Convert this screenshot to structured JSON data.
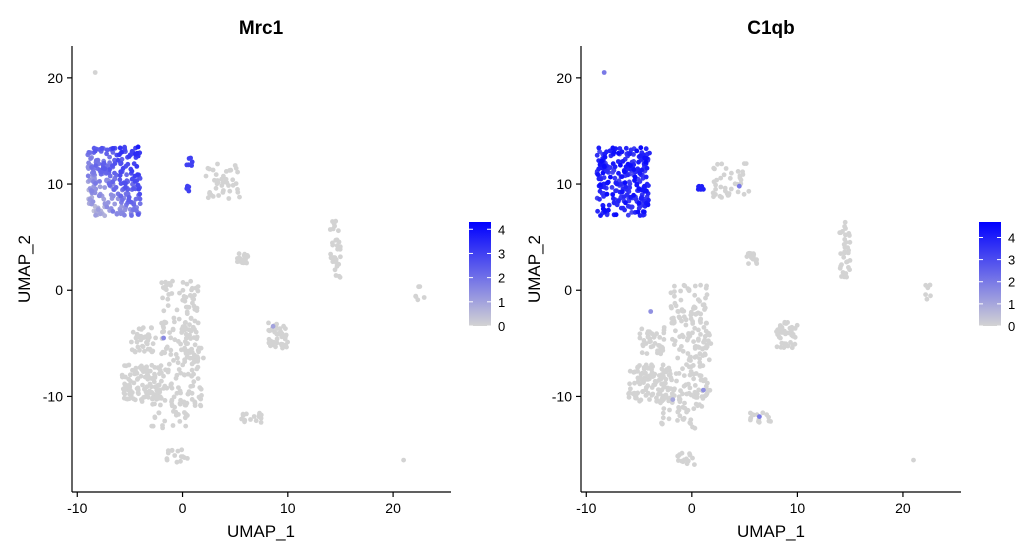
{
  "chart_data": [
    {
      "type": "scatter",
      "title": "Mrc1",
      "xlabel": "UMAP_1",
      "ylabel": "UMAP_2",
      "xlim": [
        -10.5,
        25.5
      ],
      "ylim": [
        -19,
        23
      ],
      "x_ticks": [
        -10,
        0,
        10,
        20
      ],
      "y_ticks": [
        -10,
        0,
        10,
        20
      ],
      "grid": false,
      "legend": {
        "position": "right",
        "colors": [
          "#d3d3d3",
          "#0000ff"
        ],
        "ticks": [
          0,
          1,
          2,
          3,
          4
        ],
        "max": 4.3
      },
      "low_color": "#d3d3d3",
      "high_color": "#0000ff",
      "clusters": [
        {
          "x": [
            -9.0,
            -4.0
          ],
          "y": [
            7.0,
            13.5
          ],
          "n": 260,
          "levels": [
            0.5,
            3.5
          ],
          "pattern": "ne"
        },
        {
          "x": [
            -2.0,
            1.5
          ],
          "y": [
            -10.0,
            1.0
          ],
          "n": 150,
          "levels": [
            0,
            0
          ]
        },
        {
          "x": [
            -6.0,
            -2.0
          ],
          "y": [
            -10.5,
            -7.0
          ],
          "n": 110,
          "levels": [
            0,
            0
          ]
        },
        {
          "x": [
            -5.0,
            -2.5
          ],
          "y": [
            -6.0,
            -3.5
          ],
          "n": 40,
          "levels": [
            0,
            0
          ]
        },
        {
          "x": [
            -3.0,
            0.5
          ],
          "y": [
            -13.0,
            -10.0
          ],
          "n": 40,
          "levels": [
            0,
            0
          ]
        },
        {
          "x": [
            0.5,
            1.8
          ],
          "y": [
            -11.0,
            -9.0
          ],
          "n": 15,
          "levels": [
            0,
            0
          ]
        },
        {
          "x": [
            0.0,
            2.0
          ],
          "y": [
            -7.0,
            -4.0
          ],
          "n": 20,
          "levels": [
            0,
            0
          ]
        },
        {
          "x": [
            8.0,
            10.0
          ],
          "y": [
            -5.5,
            -3.0
          ],
          "n": 40,
          "levels": [
            0,
            0
          ]
        },
        {
          "x": [
            14.0,
            15.0
          ],
          "y": [
            1.0,
            6.5
          ],
          "n": 35,
          "levels": [
            0,
            0
          ]
        },
        {
          "x": [
            5.2,
            6.2
          ],
          "y": [
            2.5,
            3.5
          ],
          "n": 20,
          "levels": [
            0,
            0
          ]
        },
        {
          "x": [
            5.5,
            7.5
          ],
          "y": [
            -12.5,
            -11.5
          ],
          "n": 15,
          "levels": [
            0,
            0
          ]
        },
        {
          "x": [
            -1.5,
            0.5
          ],
          "y": [
            -16.5,
            -15.0
          ],
          "n": 15,
          "levels": [
            0,
            0
          ]
        },
        {
          "x": [
            22.0,
            23.0
          ],
          "y": [
            -1.0,
            0.5
          ],
          "n": 6,
          "levels": [
            0,
            0
          ]
        },
        {
          "x": [
            2.0,
            5.5
          ],
          "y": [
            8.5,
            12.0
          ],
          "n": 40,
          "levels": [
            0,
            0
          ]
        },
        {
          "x": [
            0.3,
            1.0
          ],
          "y": [
            11.5,
            12.5
          ],
          "n": 6,
          "levels": [
            3,
            3
          ]
        },
        {
          "x": [
            0.3,
            1.0
          ],
          "y": [
            9.3,
            9.8
          ],
          "n": 5,
          "levels": [
            3,
            3
          ]
        }
      ],
      "points": [
        {
          "x": -8.3,
          "y": 20.5,
          "v": 0
        },
        {
          "x": 21.0,
          "y": -16.0,
          "v": 0
        },
        {
          "x": -1.8,
          "y": -4.5,
          "v": 1.5
        },
        {
          "x": 8.6,
          "y": -3.4,
          "v": 1.0
        }
      ]
    },
    {
      "type": "scatter",
      "title": "C1qb",
      "xlabel": "UMAP_1",
      "ylabel": "UMAP_2",
      "xlim": [
        -10.5,
        25.5
      ],
      "ylim": [
        -19,
        23
      ],
      "x_ticks": [
        -10,
        0,
        10,
        20
      ],
      "y_ticks": [
        -10,
        0,
        10,
        20
      ],
      "grid": false,
      "legend": {
        "position": "right",
        "colors": [
          "#d3d3d3",
          "#0000ff"
        ],
        "ticks": [
          0,
          1,
          2,
          3,
          4
        ],
        "max": 4.7
      },
      "low_color": "#d3d3d3",
      "high_color": "#0000ff",
      "clusters": [
        {
          "x": [
            -9.0,
            -4.0
          ],
          "y": [
            7.0,
            13.5
          ],
          "n": 260,
          "levels": [
            3.0,
            4.5
          ],
          "pattern": "uniform"
        },
        {
          "x": [
            -2.0,
            1.5
          ],
          "y": [
            -10.0,
            1.0
          ],
          "n": 150,
          "levels": [
            0,
            0
          ]
        },
        {
          "x": [
            -6.0,
            -2.0
          ],
          "y": [
            -10.5,
            -7.0
          ],
          "n": 110,
          "levels": [
            0,
            0
          ]
        },
        {
          "x": [
            -5.0,
            -2.5
          ],
          "y": [
            -6.0,
            -3.5
          ],
          "n": 40,
          "levels": [
            0,
            0
          ]
        },
        {
          "x": [
            -3.0,
            0.5
          ],
          "y": [
            -13.0,
            -10.0
          ],
          "n": 40,
          "levels": [
            0,
            0
          ]
        },
        {
          "x": [
            0.5,
            1.8
          ],
          "y": [
            -11.0,
            -9.0
          ],
          "n": 15,
          "levels": [
            0,
            0
          ]
        },
        {
          "x": [
            0.0,
            2.0
          ],
          "y": [
            -7.0,
            -4.0
          ],
          "n": 20,
          "levels": [
            0,
            0
          ]
        },
        {
          "x": [
            8.0,
            10.0
          ],
          "y": [
            -5.5,
            -3.0
          ],
          "n": 40,
          "levels": [
            0,
            0
          ]
        },
        {
          "x": [
            14.0,
            15.0
          ],
          "y": [
            1.0,
            6.5
          ],
          "n": 35,
          "levels": [
            0,
            0
          ]
        },
        {
          "x": [
            5.2,
            6.2
          ],
          "y": [
            2.5,
            3.5
          ],
          "n": 20,
          "levels": [
            0,
            0
          ]
        },
        {
          "x": [
            5.5,
            7.5
          ],
          "y": [
            -12.5,
            -11.5
          ],
          "n": 15,
          "levels": [
            0,
            0
          ]
        },
        {
          "x": [
            -1.5,
            0.5
          ],
          "y": [
            -16.5,
            -15.0
          ],
          "n": 15,
          "levels": [
            0,
            0
          ]
        },
        {
          "x": [
            22.0,
            23.0
          ],
          "y": [
            -1.0,
            0.5
          ],
          "n": 6,
          "levels": [
            0,
            0
          ]
        },
        {
          "x": [
            2.0,
            5.5
          ],
          "y": [
            8.5,
            12.0
          ],
          "n": 40,
          "levels": [
            0,
            0
          ]
        },
        {
          "x": [
            0.5,
            1.2
          ],
          "y": [
            9.3,
            9.8
          ],
          "n": 6,
          "levels": [
            4,
            4
          ]
        }
      ],
      "points": [
        {
          "x": -8.3,
          "y": 20.5,
          "v": 2.0
        },
        {
          "x": 21.0,
          "y": -16.0,
          "v": 0
        },
        {
          "x": 4.5,
          "y": 9.8,
          "v": 2.0
        },
        {
          "x": -3.9,
          "y": -2.0,
          "v": 1.5
        },
        {
          "x": 6.4,
          "y": -11.9,
          "v": 2.0
        },
        {
          "x": -1.8,
          "y": -10.3,
          "v": 1.0
        },
        {
          "x": 1.1,
          "y": -9.4,
          "v": 1.5
        }
      ]
    }
  ]
}
